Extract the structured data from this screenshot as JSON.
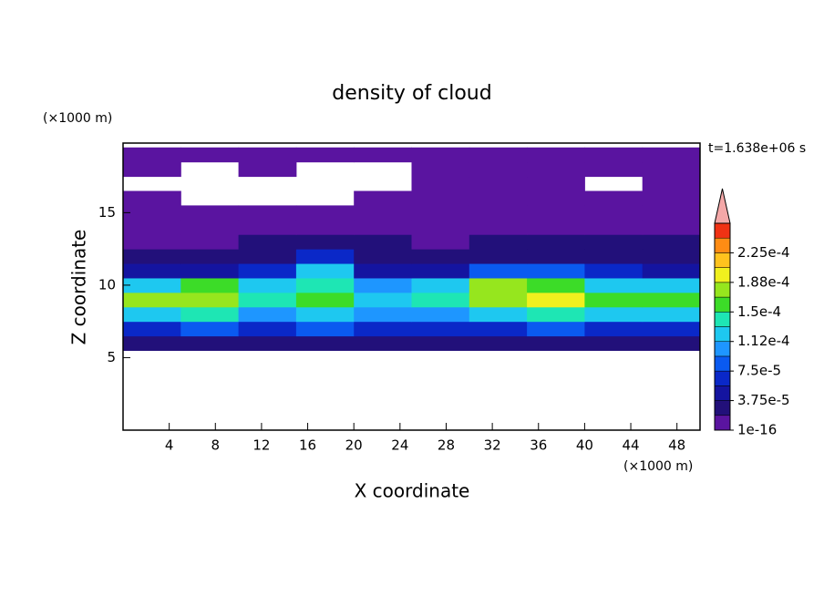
{
  "chart_data": {
    "type": "contour",
    "title": "density of cloud",
    "xlabel": "X coordinate",
    "ylabel": "Z coordinate",
    "x_unit": "(×1000 m)",
    "y_unit": "(×1000 m)",
    "annotation": "t=1.638e+06 s",
    "xlim": [
      0,
      50
    ],
    "ylim": [
      0,
      19.8
    ],
    "xticks": [
      4,
      8,
      12,
      16,
      20,
      24,
      28,
      32,
      36,
      40,
      44,
      48
    ],
    "yticks": [
      5,
      10,
      15
    ],
    "x": [
      2.5,
      7.5,
      12.5,
      17.5,
      22.5,
      27.5,
      32.5,
      37.5,
      42.5,
      47.5
    ],
    "y": [
      6,
      7,
      8,
      9,
      10,
      11,
      12,
      13,
      14,
      15,
      16,
      17,
      18,
      19
    ],
    "z": [
      [
        2.5e-05,
        2.5e-05,
        2.5e-05,
        3e-05,
        2.5e-05,
        2.5e-05,
        2.5e-05,
        2.5e-05,
        3e-05,
        2.5e-05
      ],
      [
        7e-05,
        8e-05,
        6e-05,
        9e-05,
        6e-05,
        6e-05,
        7e-05,
        8e-05,
        7e-05,
        7e-05
      ],
      [
        0.00013,
        0.00014,
        0.00011,
        0.00012,
        0.0001,
        0.00011,
        0.00013,
        0.00014,
        0.00012,
        0.00013
      ],
      [
        0.00017,
        0.00018,
        0.00014,
        0.00015,
        0.00013,
        0.00014,
        0.00018,
        0.00019,
        0.00016,
        0.00016
      ],
      [
        0.00012,
        0.00016,
        0.00013,
        0.00014,
        0.00011,
        0.00012,
        0.00017,
        0.00016,
        0.00013,
        0.00012
      ],
      [
        4e-05,
        5e-05,
        6e-05,
        0.00012,
        5e-05,
        4e-05,
        8e-05,
        9e-05,
        6e-05,
        5e-05
      ],
      [
        2.5e-05,
        2.5e-05,
        3e-05,
        6e-05,
        3e-05,
        2.5e-05,
        3e-05,
        3e-05,
        3e-05,
        2.5e-05
      ],
      [
        1.5e-05,
        1.5e-05,
        2e-05,
        2.5e-05,
        2e-05,
        1.5e-05,
        2e-05,
        2e-05,
        2e-05,
        2e-05
      ],
      [
        1e-05,
        1e-05,
        1e-05,
        1.5e-05,
        1e-05,
        1e-05,
        1e-05,
        1e-05,
        1e-05,
        1e-05
      ],
      [
        1e-05,
        5e-06,
        5e-06,
        5e-06,
        5e-06,
        1e-05,
        5e-06,
        5e-06,
        5e-06,
        5e-06
      ],
      [
        5e-06,
        null,
        null,
        null,
        5e-06,
        5e-06,
        5e-06,
        5e-06,
        5e-06,
        5e-06
      ],
      [
        null,
        null,
        null,
        null,
        null,
        5e-06,
        5e-06,
        5e-06,
        null,
        5e-06
      ],
      [
        5e-06,
        null,
        5e-06,
        null,
        null,
        5e-06,
        5e-06,
        5e-06,
        5e-06,
        5e-06
      ],
      [
        5e-06,
        5e-06,
        5e-06,
        5e-06,
        5e-06,
        5e-06,
        5e-06,
        5e-06,
        5e-06,
        5e-06
      ]
    ],
    "levels": [
      1e-16,
      1.875e-05,
      3.75e-05,
      5.625e-05,
      7.5e-05,
      9.375e-05,
      0.0001125,
      0.00013125,
      0.00015,
      0.00016875,
      0.0001875,
      0.00020625,
      0.000225,
      0.00024375,
      0.0002625
    ],
    "colors": [
      "#5a14a0",
      "#22107a",
      "#1414a0",
      "#0a28c8",
      "#0a5af0",
      "#1e96ff",
      "#1ec8f0",
      "#1ee6b4",
      "#3cdc28",
      "#96e61e",
      "#f0f01e",
      "#ffc31e",
      "#ff8c14",
      "#f03214"
    ],
    "extend_color": "#f4a8a8",
    "cticks": [
      1e-16,
      {
        "value": 3.75e-05,
        "label": "3.75e-5"
      },
      {
        "value": 7.5e-05,
        "label": "7.5e-5"
      },
      {
        "value": 0.0001125,
        "label": "1.12e-4"
      },
      {
        "value": 0.00015,
        "label": "1.5e-4"
      },
      {
        "value": 0.0001875,
        "label": "1.88e-4"
      },
      {
        "value": 0.000225,
        "label": "2.25e-4"
      }
    ]
  }
}
